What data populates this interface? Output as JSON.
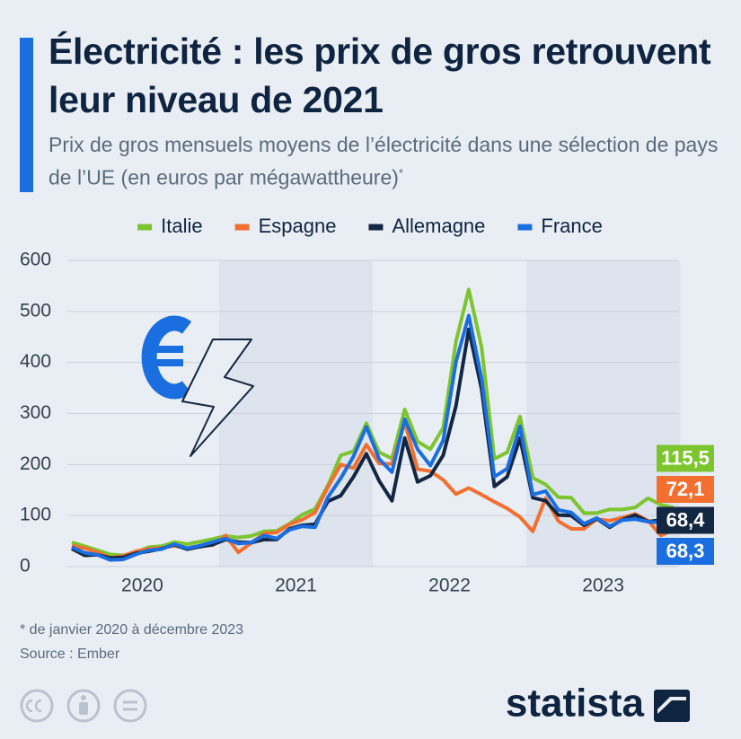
{
  "chart_data": {
    "type": "line",
    "title": "Électricité : les prix de gros retrouvent leur niveau de 2021",
    "subtitle": "Prix de gros mensuels moyens de l’électricité dans une sélection de pays de l’UE (en euros par mégawattheure)",
    "subtitle_note": "*",
    "footnote": "* de janvier 2020 à décembre 2023",
    "source": "Source : Ember",
    "brand": "statista",
    "categories": [
      null,
      null,
      null,
      null,
      null,
      "2020",
      null,
      null,
      null,
      null,
      null,
      null,
      null,
      null,
      null,
      null,
      null,
      "2021",
      null,
      null,
      null,
      null,
      null,
      null,
      null,
      null,
      null,
      null,
      null,
      "2022",
      null,
      null,
      null,
      null,
      null,
      null,
      null,
      null,
      null,
      null,
      null,
      "2023",
      null,
      null,
      null,
      null,
      null,
      null
    ],
    "ylim": [
      0,
      600
    ],
    "yticks": [
      0,
      100,
      200,
      300,
      400,
      500,
      600
    ],
    "grid": true,
    "series": [
      {
        "name": "Italie",
        "color": "#7dc52e",
        "values": [
          47.5,
          40,
          32,
          24,
          22,
          28,
          38,
          40,
          48,
          44,
          49,
          54,
          60,
          57,
          60,
          69,
          70,
          84,
          102,
          113,
          159,
          218,
          226,
          281,
          224,
          212,
          308,
          245,
          230,
          272,
          441,
          543,
          430,
          211,
          224,
          294,
          174,
          161,
          136,
          135,
          105,
          105,
          112,
          112,
          116,
          134,
          121,
          115.5
        ],
        "value_labels": [
          null,
          null,
          null,
          null,
          null,
          null,
          null,
          null,
          null,
          null,
          null,
          null,
          null,
          null,
          null,
          null,
          null,
          null,
          null,
          null,
          null,
          null,
          null,
          null,
          null,
          null,
          null,
          null,
          null,
          null,
          null,
          null,
          null,
          null,
          null,
          null,
          null,
          null,
          null,
          null,
          null,
          null,
          null,
          null,
          null,
          null,
          null,
          "115,5"
        ]
      },
      {
        "name": "Espagne",
        "color": "#f36f30",
        "values": [
          41,
          36,
          28,
          17,
          21,
          30,
          35,
          36,
          41,
          36,
          41,
          42,
          61,
          28,
          46,
          65,
          67,
          83,
          92,
          106,
          156,
          200,
          193,
          239,
          202,
          201,
          283,
          191,
          187,
          170,
          142,
          154,
          141,
          127,
          114,
          97,
          69,
          134,
          89,
          74,
          74,
          93,
          90,
          96,
          103,
          90,
          61,
          72.1
        ],
        "value_labels": [
          null,
          null,
          null,
          null,
          null,
          null,
          null,
          null,
          null,
          null,
          null,
          null,
          null,
          null,
          null,
          null,
          null,
          null,
          null,
          null,
          null,
          null,
          null,
          null,
          null,
          null,
          null,
          null,
          null,
          null,
          null,
          null,
          null,
          null,
          null,
          null,
          null,
          null,
          null,
          null,
          null,
          null,
          null,
          null,
          null,
          null,
          null,
          "72,1"
        ]
      },
      {
        "name": "Allemagne",
        "color": "#142742",
        "values": [
          35,
          22,
          23,
          17,
          18,
          26,
          30,
          35,
          43,
          34,
          39,
          43,
          53,
          48,
          47,
          53,
          53,
          74,
          81,
          83,
          128,
          139,
          176,
          221,
          168,
          129,
          252,
          166,
          178,
          218,
          315,
          465,
          348,
          157,
          176,
          252,
          135,
          129,
          101,
          100,
          81,
          94,
          77,
          92,
          101,
          88,
          91,
          68.4
        ],
        "value_labels": [
          null,
          null,
          null,
          null,
          null,
          null,
          null,
          null,
          null,
          null,
          null,
          null,
          null,
          null,
          null,
          null,
          null,
          null,
          null,
          null,
          null,
          null,
          null,
          null,
          null,
          null,
          null,
          null,
          null,
          null,
          null,
          null,
          null,
          null,
          null,
          null,
          null,
          null,
          null,
          null,
          null,
          null,
          null,
          null,
          null,
          null,
          null,
          "68,4"
        ]
      },
      {
        "name": "France",
        "color": "#1a6ee0",
        "values": [
          38,
          27,
          23,
          13,
          14,
          24,
          32,
          34,
          44,
          36,
          41,
          48,
          55,
          45,
          47,
          61,
          55,
          72,
          79,
          77,
          136,
          173,
          216,
          274,
          211,
          185,
          289,
          230,
          198,
          247,
          401,
          492,
          368,
          176,
          192,
          275,
          141,
          148,
          111,
          106,
          84,
          95,
          79,
          91,
          93,
          88,
          86,
          68.3
        ],
        "value_labels": [
          null,
          null,
          null,
          null,
          null,
          null,
          null,
          null,
          null,
          null,
          null,
          null,
          null,
          null,
          null,
          null,
          null,
          null,
          null,
          null,
          null,
          null,
          null,
          null,
          null,
          null,
          null,
          null,
          null,
          null,
          null,
          null,
          null,
          null,
          null,
          null,
          null,
          null,
          null,
          null,
          null,
          null,
          null,
          null,
          null,
          null,
          null,
          "68,3"
        ]
      }
    ]
  }
}
